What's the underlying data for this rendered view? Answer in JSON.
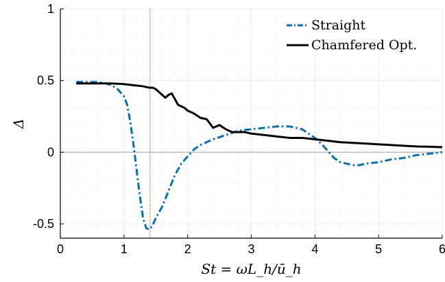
{
  "chart_data": {
    "type": "line",
    "title": "",
    "xlabel": "St = ωL_h/ū_h",
    "ylabel": "Δ",
    "xlim": [
      0,
      6
    ],
    "ylim": [
      -0.6,
      1
    ],
    "xticks": [
      "0",
      "1",
      "2",
      "3",
      "4",
      "5",
      "6"
    ],
    "yticks": [
      "-0.5",
      "0",
      "0.5",
      "1"
    ],
    "grid": true,
    "minor_grid": true,
    "legend_position": "top-right",
    "reference_lines": [
      {
        "orientation": "horizontal",
        "value": 0,
        "color": "#b0b0b0"
      },
      {
        "orientation": "vertical",
        "value": 1.41,
        "color": "#d95319"
      }
    ],
    "series": [
      {
        "name": "Straight",
        "color": "#0072bd",
        "line_style": "dash-dot",
        "x": [
          0.25,
          0.35,
          0.5,
          0.6,
          0.7,
          0.8,
          0.9,
          1.0,
          1.05,
          1.1,
          1.15,
          1.2,
          1.25,
          1.3,
          1.35,
          1.4,
          1.45,
          1.5,
          1.6,
          1.7,
          1.8,
          1.9,
          2.0,
          2.1,
          2.2,
          2.4,
          2.6,
          2.8,
          3.0,
          3.2,
          3.4,
          3.6,
          3.8,
          3.9,
          4.0,
          4.1,
          4.2,
          4.3,
          4.4,
          4.5,
          4.6,
          4.7,
          4.8,
          5.0,
          5.2,
          5.4,
          5.6,
          5.8,
          6.0
        ],
        "y": [
          0.49,
          0.49,
          0.49,
          0.49,
          0.48,
          0.47,
          0.44,
          0.39,
          0.33,
          0.21,
          0.05,
          -0.13,
          -0.31,
          -0.46,
          -0.53,
          -0.54,
          -0.51,
          -0.46,
          -0.38,
          -0.27,
          -0.16,
          -0.08,
          -0.03,
          0.02,
          0.05,
          0.09,
          0.12,
          0.15,
          0.16,
          0.17,
          0.18,
          0.18,
          0.16,
          0.13,
          0.1,
          0.06,
          0.01,
          -0.04,
          -0.07,
          -0.08,
          -0.09,
          -0.09,
          -0.08,
          -0.07,
          -0.05,
          -0.04,
          -0.02,
          -0.01,
          0.0
        ]
      },
      {
        "name": "Chamfered Opt.",
        "color": "#000000",
        "line_style": "solid",
        "x": [
          0.25,
          0.5,
          0.8,
          1.0,
          1.1,
          1.2,
          1.3,
          1.4,
          1.45,
          1.5,
          1.55,
          1.6,
          1.65,
          1.7,
          1.75,
          1.8,
          1.85,
          1.9,
          1.95,
          2.0,
          2.05,
          2.1,
          2.2,
          2.3,
          2.4,
          2.5,
          2.6,
          2.65,
          2.7,
          2.8,
          2.9,
          3.0,
          3.2,
          3.4,
          3.6,
          3.8,
          4.0,
          4.2,
          4.4,
          4.6,
          4.8,
          5.0,
          5.2,
          5.4,
          5.6,
          5.8,
          6.0
        ],
        "y": [
          0.48,
          0.48,
          0.48,
          0.475,
          0.47,
          0.465,
          0.46,
          0.45,
          0.45,
          0.44,
          0.42,
          0.4,
          0.38,
          0.4,
          0.41,
          0.37,
          0.33,
          0.32,
          0.31,
          0.29,
          0.28,
          0.27,
          0.24,
          0.23,
          0.17,
          0.19,
          0.16,
          0.15,
          0.14,
          0.14,
          0.14,
          0.13,
          0.12,
          0.11,
          0.1,
          0.1,
          0.09,
          0.08,
          0.07,
          0.065,
          0.06,
          0.055,
          0.05,
          0.045,
          0.04,
          0.038,
          0.035
        ]
      }
    ]
  }
}
